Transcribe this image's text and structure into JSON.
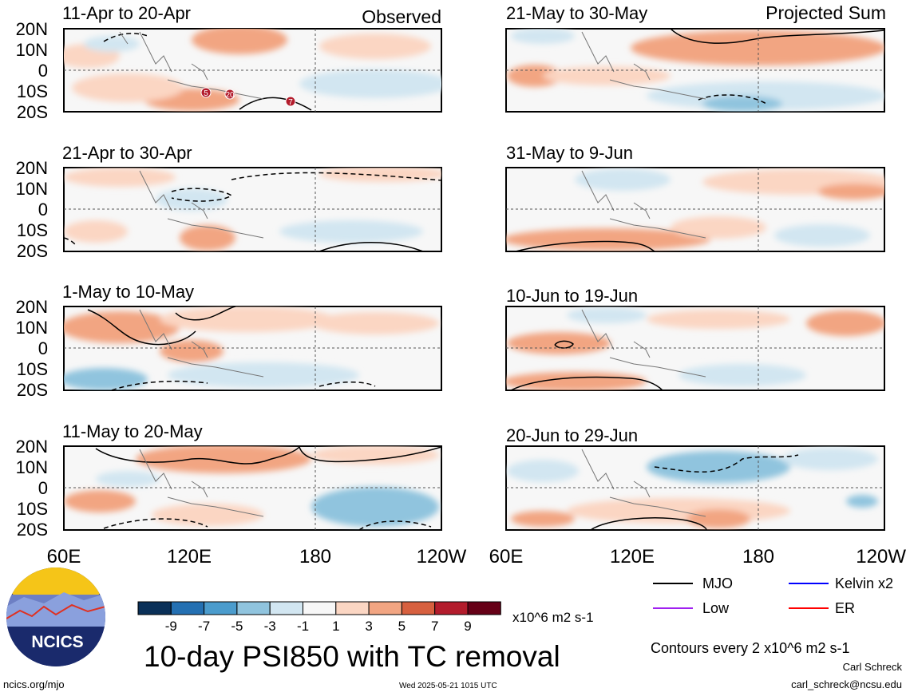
{
  "labels": {
    "observed": "Observed",
    "projected": "Projected Sum"
  },
  "panels": [
    {
      "title": "11-Apr to 20-Apr"
    },
    {
      "title": "21-Apr to 30-Apr"
    },
    {
      "title": "1-May to 10-May"
    },
    {
      "title": "11-May to 20-May"
    },
    {
      "title": "21-May to 30-May"
    },
    {
      "title": "31-May to 9-Jun"
    },
    {
      "title": "10-Jun to 19-Jun"
    },
    {
      "title": "20-Jun to 29-Jun"
    }
  ],
  "lat_ticks": [
    "20N",
    "10N",
    "0",
    "10S",
    "20S"
  ],
  "lon_ticks": [
    "60E",
    "120E",
    "180",
    "120W"
  ],
  "colorbar": {
    "colors": [
      "#0a3058",
      "#2470b2",
      "#4b9ccd",
      "#90c4de",
      "#d2e6f1",
      "#f7f7f7",
      "#fbd6c3",
      "#f2a582",
      "#d7603f",
      "#b31c2c",
      "#660017"
    ],
    "ticks": [
      "-9",
      "-7",
      "-5",
      "-3",
      "-1",
      "1",
      "3",
      "5",
      "7",
      "9"
    ],
    "unit": "x10^6 m2 s-1"
  },
  "main_title": "10-day PSI850 with TC removal",
  "legend": [
    {
      "label": "MJO",
      "color": "#000000"
    },
    {
      "label": "Kelvin x2",
      "color": "#0000ff"
    },
    {
      "label": "Low",
      "color": "#a020f0"
    },
    {
      "label": "ER",
      "color": "#ff0000"
    }
  ],
  "contour_note": "Contours every 2 x10^6 m2 s-1",
  "logo_text": "NCICS",
  "footer": {
    "url": "ncics.org/mjo",
    "timestamp": "Wed 2025-05-21 1015 UTC",
    "author": "Carl Schreck",
    "email": "carl_schreck@ncsu.edu"
  },
  "tc_markers": [
    "5",
    "20",
    "7"
  ]
}
